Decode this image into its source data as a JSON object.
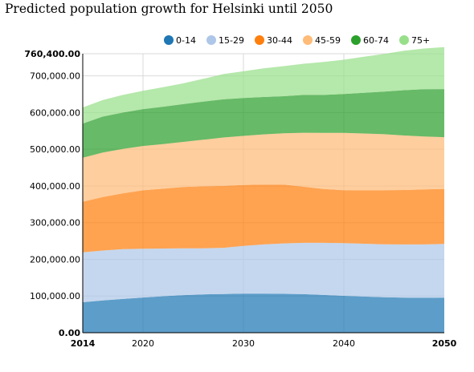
{
  "chart_data": {
    "type": "area",
    "stacked": true,
    "title": "Predicted population growth for Helsinki until 2050",
    "xlabel": "",
    "ylabel": "",
    "x": [
      2014,
      2016,
      2018,
      2020,
      2022,
      2024,
      2026,
      2028,
      2030,
      2032,
      2034,
      2036,
      2038,
      2040,
      2042,
      2044,
      2046,
      2048,
      2050
    ],
    "xlim": [
      2014,
      2050
    ],
    "ylim": [
      0,
      760400
    ],
    "x_ticks": [
      {
        "value": 2014,
        "label": "2014",
        "bold": true
      },
      {
        "value": 2020,
        "label": "2020",
        "bold": false
      },
      {
        "value": 2030,
        "label": "2030",
        "bold": false
      },
      {
        "value": 2040,
        "label": "2040",
        "bold": false
      },
      {
        "value": 2050,
        "label": "2050",
        "bold": true
      }
    ],
    "y_ticks": [
      {
        "value": 0,
        "label": "0.00",
        "bold": true
      },
      {
        "value": 100000,
        "label": "100,000.00",
        "bold": false
      },
      {
        "value": 200000,
        "label": "200,000.00",
        "bold": false
      },
      {
        "value": 300000,
        "label": "300,000.00",
        "bold": false
      },
      {
        "value": 400000,
        "label": "400,000.00",
        "bold": false
      },
      {
        "value": 500000,
        "label": "500,000.00",
        "bold": false
      },
      {
        "value": 600000,
        "label": "600,000.00",
        "bold": false
      },
      {
        "value": 700000,
        "label": "700,000.00",
        "bold": false
      },
      {
        "value": 760400,
        "label": "760,400.00",
        "bold": true
      }
    ],
    "grid": true,
    "legend_position": "top-right",
    "series": [
      {
        "name": "0-14",
        "color": "#1f77b4",
        "values": [
          83000,
          88000,
          92000,
          96000,
          99500,
          102500,
          104500,
          105500,
          106500,
          106500,
          106000,
          105000,
          103000,
          100500,
          98500,
          96500,
          95500,
          95000,
          95500
        ]
      },
      {
        "name": "15-29",
        "color": "#aec7e8",
        "values": [
          136000,
          136000,
          136000,
          133000,
          130000,
          127500,
          125500,
          126000,
          130000,
          134000,
          137500,
          140000,
          142000,
          143500,
          144000,
          144500,
          145000,
          145500,
          146500
        ]
      },
      {
        "name": "30-44",
        "color": "#ff7f0e",
        "values": [
          138000,
          146000,
          152000,
          159000,
          163000,
          167000,
          169000,
          168500,
          166000,
          163000,
          160000,
          153000,
          146500,
          144500,
          146000,
          147500,
          148500,
          150000,
          150000
        ]
      },
      {
        "name": "45-59",
        "color": "#ffbb78",
        "values": [
          120000,
          121000,
          121000,
          121000,
          121500,
          123000,
          127000,
          132000,
          134000,
          137000,
          140000,
          147000,
          153000,
          156000,
          154500,
          152500,
          148500,
          144500,
          141000
        ]
      },
      {
        "name": "60-74",
        "color": "#2ca02c",
        "values": [
          93000,
          98000,
          99000,
          100500,
          102000,
          103000,
          104000,
          104000,
          103000,
          102000,
          101000,
          103000,
          103500,
          106000,
          111000,
          116000,
          123500,
          128500,
          131000
        ]
      },
      {
        "name": "75+",
        "color": "#98df8a",
        "values": [
          44000,
          45000,
          48000,
          50000,
          53000,
          56500,
          62000,
          69000,
          73000,
          78000,
          82000,
          85000,
          90000,
          93500,
          98000,
          103000,
          107500,
          111000,
          114400
        ]
      }
    ]
  }
}
